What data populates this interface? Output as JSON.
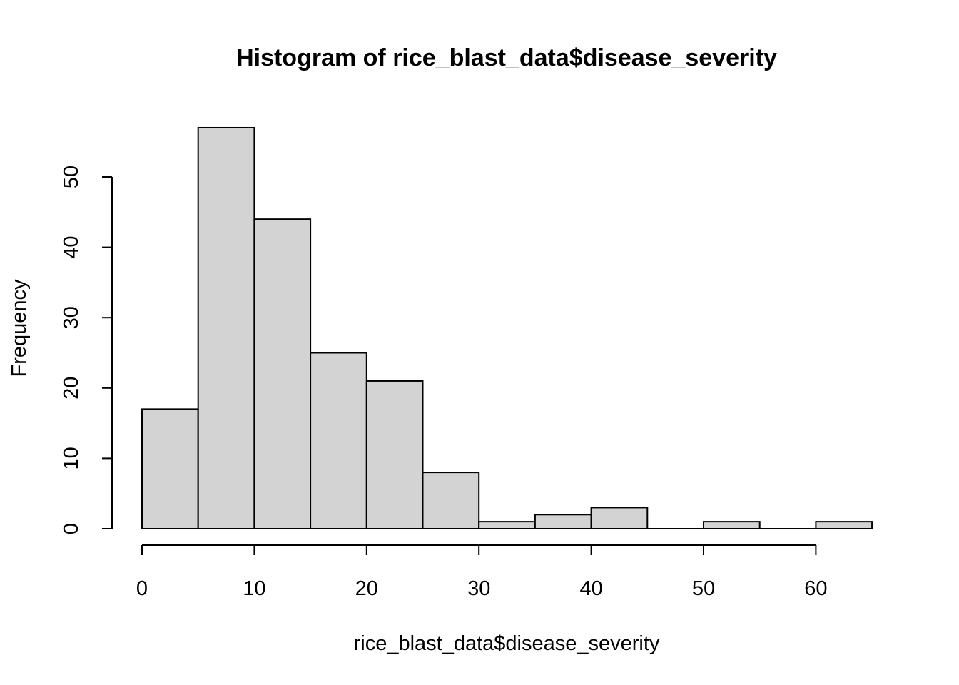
{
  "chart_data": {
    "type": "bar",
    "title": "Histogram of rice_blast_data$disease_severity",
    "xlabel": "rice_blast_data$disease_severity",
    "ylabel": "Frequency",
    "bins": [
      {
        "from": 0,
        "to": 5,
        "count": 17
      },
      {
        "from": 5,
        "to": 10,
        "count": 57
      },
      {
        "from": 10,
        "to": 15,
        "count": 44
      },
      {
        "from": 15,
        "to": 20,
        "count": 25
      },
      {
        "from": 20,
        "to": 25,
        "count": 21
      },
      {
        "from": 25,
        "to": 30,
        "count": 8
      },
      {
        "from": 30,
        "to": 35,
        "count": 1
      },
      {
        "from": 35,
        "to": 40,
        "count": 2
      },
      {
        "from": 40,
        "to": 45,
        "count": 3
      },
      {
        "from": 45,
        "to": 50,
        "count": 0
      },
      {
        "from": 50,
        "to": 55,
        "count": 1
      },
      {
        "from": 55,
        "to": 60,
        "count": 0
      },
      {
        "from": 60,
        "to": 65,
        "count": 1
      }
    ],
    "xlim": [
      0,
      65
    ],
    "ylim": [
      0,
      57
    ],
    "xticks": [
      "0",
      "10",
      "20",
      "30",
      "40",
      "50",
      "60"
    ],
    "yticks": [
      "0",
      "10",
      "20",
      "30",
      "40",
      "50"
    ],
    "grid": false,
    "bar_fill": "#d3d3d3",
    "bar_stroke": "#000000"
  }
}
